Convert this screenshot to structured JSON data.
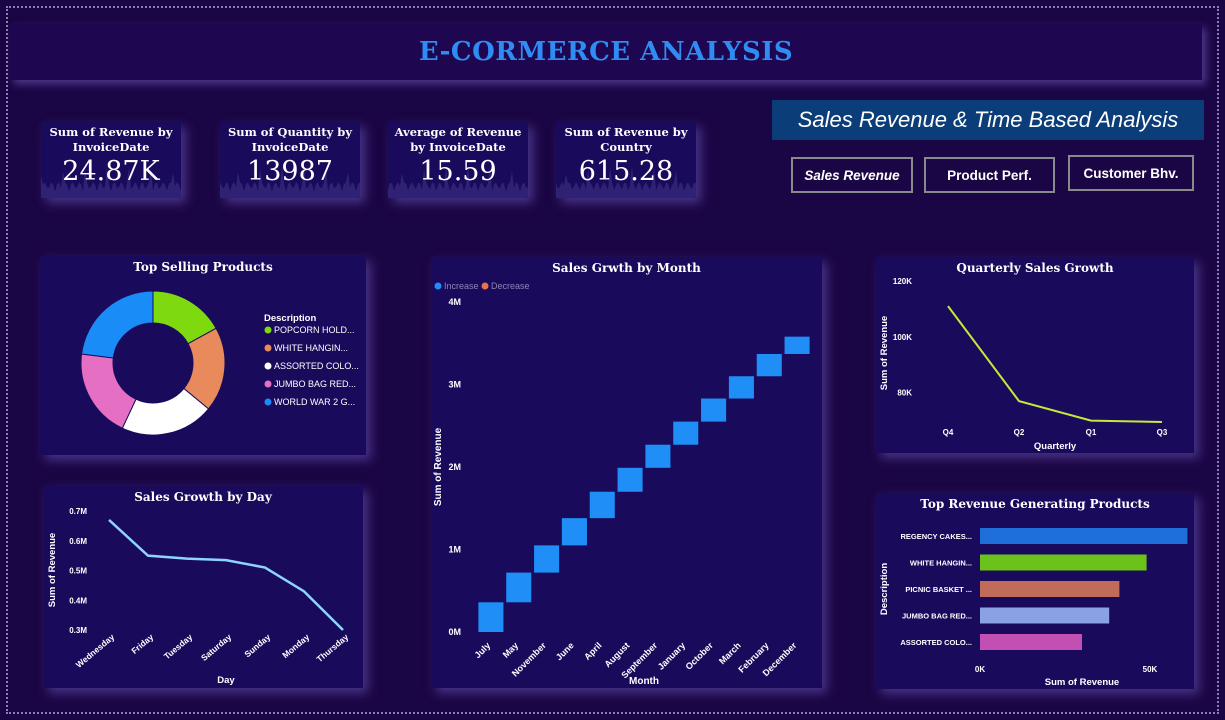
{
  "header": {
    "title": "E-CORMERCE ANALYSIS"
  },
  "kpis": [
    {
      "label": "Sum of Revenue by InvoiceDate",
      "value": "24.87K"
    },
    {
      "label": "Sum of Quantity by InvoiceDate",
      "value": "13987"
    },
    {
      "label": "Average of Revenue by InvoiceDate",
      "value": "15.59"
    },
    {
      "label": "Sum of Revenue by Country",
      "value": "615.28"
    }
  ],
  "banner": {
    "text": "Sales Revenue & Time Based Analysis"
  },
  "nav": [
    {
      "label": "Sales Revenue",
      "active": true
    },
    {
      "label": "Product Perf.",
      "active": false
    },
    {
      "label": "Customer Bhv.",
      "active": false
    }
  ],
  "colors": {
    "background": "#1b0645",
    "card": "#1a0a5c",
    "title": "#2f8cf3",
    "banner": "#0b3d78",
    "increase": "#1f8ff7",
    "decrease": "#e8734a"
  },
  "chart_data": [
    {
      "id": "top-selling",
      "type": "pie",
      "title": "Top Selling Products",
      "legend_title": "Description",
      "legend_position": "right",
      "labels": [
        "POPCORN HOLD...",
        "WHITE HANGIN...",
        "ASSORTED COLO...",
        "JUMBO BAG RED...",
        "WORLD WAR 2 G..."
      ],
      "values": [
        17,
        19,
        21,
        20,
        23
      ],
      "colors": [
        "#7ed90f",
        "#e88a5c",
        "#ffffff",
        "#e46fc3",
        "#1a8cf8"
      ]
    },
    {
      "id": "monthly-growth",
      "type": "bar",
      "subtype": "waterfall",
      "title": "Sales Grwth by Month",
      "legend": [
        "Increase",
        "Decrease"
      ],
      "legend_position": "top-left",
      "xlabel": "Month",
      "ylabel": "Sum of Revenue",
      "categories": [
        "July",
        "May",
        "November",
        "June",
        "April",
        "August",
        "September",
        "January",
        "October",
        "March",
        "February",
        "December"
      ],
      "values": [
        0.36,
        0.36,
        0.33,
        0.33,
        0.32,
        0.29,
        0.28,
        0.28,
        0.28,
        0.27,
        0.27,
        0.21
      ],
      "yticks": [
        "0M",
        "1M",
        "2M",
        "3M",
        "4M"
      ],
      "ylim": [
        0,
        4
      ]
    },
    {
      "id": "quarterly-growth",
      "type": "line",
      "title": "Quarterly Sales Growth",
      "xlabel": "Quarterly",
      "ylabel": "Sum of Revenue",
      "categories": [
        "Q4",
        "Q2",
        "Q1",
        "Q3"
      ],
      "values": [
        111000,
        77000,
        70000,
        69500
      ],
      "yticks": [
        "80K",
        "100K",
        "120K"
      ],
      "ytick_values": [
        80000,
        100000,
        120000
      ],
      "ylim": [
        67000,
        120000
      ],
      "color": "#c6e83a"
    },
    {
      "id": "daily-growth",
      "type": "line",
      "title": "Sales Growth by Day",
      "xlabel": "Day",
      "ylabel": "Sum of Revenue",
      "categories": [
        "Wednesday",
        "Friday",
        "Tuesday",
        "Saturday",
        "Sunday",
        "Monday",
        "Thursday"
      ],
      "values": [
        0.67,
        0.55,
        0.54,
        0.535,
        0.51,
        0.43,
        0.3
      ],
      "yticks": [
        "0.3M",
        "0.4M",
        "0.5M",
        "0.6M",
        "0.7M"
      ],
      "ytick_values": [
        0.3,
        0.4,
        0.5,
        0.6,
        0.7
      ],
      "ylim": [
        0.3,
        0.7
      ],
      "color": "#8fd3ff"
    },
    {
      "id": "top-revenue",
      "type": "bar",
      "orientation": "horizontal",
      "title": "Top Revenue Generating Products",
      "xlabel": "Sum of Revenue",
      "ylabel": "Description",
      "categories": [
        "REGENCY CAKES...",
        "WHITE HANGIN...",
        "PICNIC BASKET ...",
        "JUMBO BAG RED...",
        "ASSORTED COLO..."
      ],
      "values": [
        61000,
        49000,
        41000,
        38000,
        30000
      ],
      "colors": [
        "#1e6fd9",
        "#6ac21a",
        "#c16b5a",
        "#8aa2e3",
        "#c24fb4"
      ],
      "xticks": [
        "0K",
        "50K"
      ],
      "xtick_values": [
        0,
        50000
      ],
      "xlim": [
        0,
        60000
      ]
    }
  ]
}
